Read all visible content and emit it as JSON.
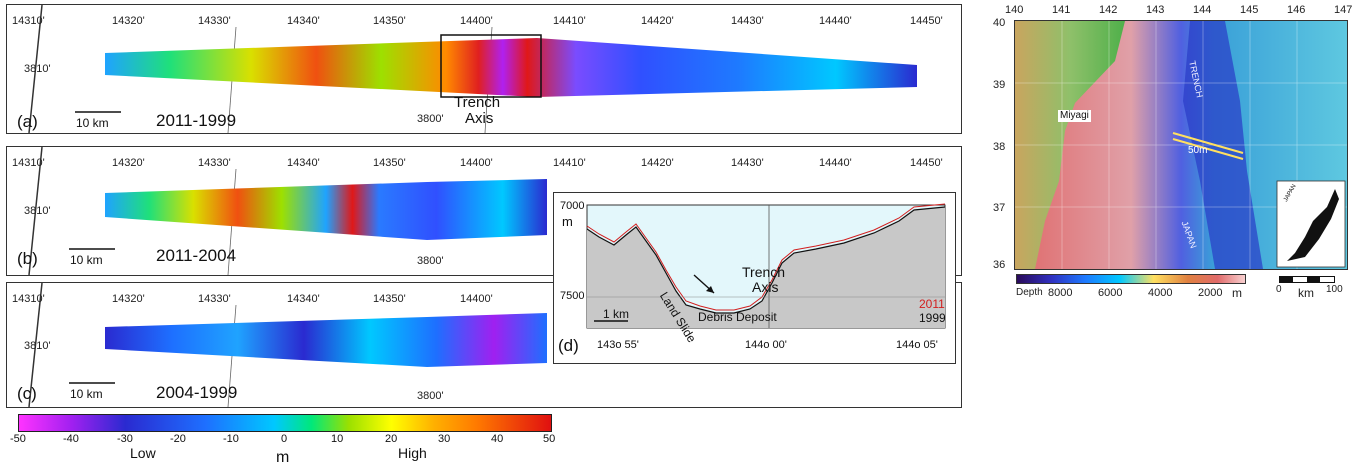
{
  "panels": [
    {
      "label": "(a)",
      "years": "2011-1999",
      "scale": "10 km",
      "lon_ticks": [
        "14310'",
        "14320'",
        "14330'",
        "14340'",
        "14350'",
        "14400'",
        "14410'",
        "14420'",
        "14430'",
        "14440'",
        "14450'"
      ],
      "lat_ticks": [
        "3810'",
        "3800'"
      ],
      "annotation": [
        "Trench",
        "Axis"
      ]
    },
    {
      "label": "(b)",
      "years": "2011-2004",
      "scale": "10 km",
      "lon_ticks": [
        "14310'",
        "14320'",
        "14330'",
        "14340'",
        "14350'",
        "14400'",
        "14410'",
        "14420'",
        "14430'",
        "14440'",
        "14450'"
      ],
      "lat_ticks": [
        "3810'",
        "3800'"
      ]
    },
    {
      "label": "(c)",
      "years": "2004-1999",
      "scale": "10 km",
      "lon_ticks": [
        "14310'",
        "14320'",
        "14330'",
        "14340'",
        "14350'",
        "14400'"
      ],
      "lat_ticks": [
        "3810'",
        "3800'"
      ]
    }
  ],
  "profile": {
    "label": "(d)",
    "y_ticks": [
      "7000",
      "7500"
    ],
    "y_unit": "m",
    "x_ticks": [
      "143o 55'",
      "144o 00'",
      "144o 05'"
    ],
    "annotations": {
      "trench": "Trench",
      "axis": "Axis",
      "landslide": "Land Slide",
      "debris": "Debris Deposit",
      "scale": "1 km"
    },
    "legend": [
      {
        "name": "2011",
        "color": "#d21f1f"
      },
      {
        "name": "1999",
        "color": "#111111"
      }
    ]
  },
  "colorbar": {
    "ticks": [
      "-50",
      "-40",
      "-30",
      "-20",
      "-10",
      "0",
      "10",
      "20",
      "30",
      "40",
      "50"
    ],
    "low": "Low",
    "unit": "m",
    "high": "High",
    "colors": [
      "#ff33ff",
      "#a020f0",
      "#2a2ad0",
      "#1e6fff",
      "#00c8ff",
      "#00e87a",
      "#9be000",
      "#ffff00",
      "#ffb000",
      "#ff7a00",
      "#e01010"
    ]
  },
  "index_map": {
    "lon_ticks": [
      "140",
      "141",
      "142",
      "143",
      "144",
      "145",
      "146",
      "147"
    ],
    "lat_ticks": [
      "40",
      "39",
      "38",
      "37",
      "36"
    ],
    "place_labels": {
      "miyagi": "Miyagi",
      "trench": "TRENCH",
      "japan": "JAPAN",
      "inset": "JAPAN",
      "offset": "50m"
    },
    "depth_bar": {
      "title": "Depth",
      "ticks": [
        "8000",
        "6000",
        "4000",
        "2000"
      ],
      "unit": "m"
    },
    "km_scale": {
      "ticks": [
        "0",
        "100"
      ],
      "unit": "km"
    }
  }
}
